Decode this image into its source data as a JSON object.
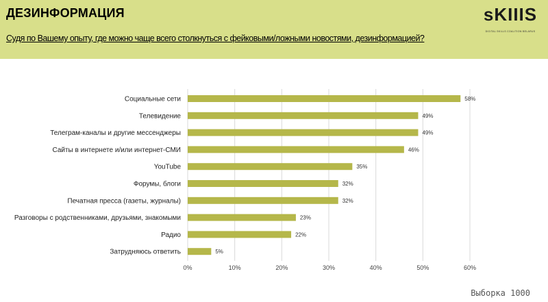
{
  "header": {
    "title": "ДЕЗИНФОРМАЦИЯ",
    "subtitle": "Судя по Вашему опыту, где можно чаще всего столкнуться с фейковыми/ложными новостями, дезинформацией?",
    "logo_text": "sKIIIS",
    "logo_tagline": "DIGITAL SKILLS COALITION BELARUS"
  },
  "footer": {
    "sample_note": "Выборка 1000"
  },
  "colors": {
    "header_bg": "#d8df8a",
    "bar": "#b5b74a",
    "grid": "#d9d9d9"
  },
  "chart_data": {
    "type": "bar",
    "orientation": "horizontal",
    "categories": [
      "Социальные сети",
      "Телевидение",
      "Телеграм-каналы и другие мессенджеры",
      "Сайты в интернете и/или интернет-СМИ",
      "YouTube",
      "Форумы, блоги",
      "Печатная пресса (газеты, журналы)",
      "Разговоры с родственниками, друзьями, знакомыми",
      "Радио",
      "Затрудняюсь ответить"
    ],
    "values": [
      58,
      49,
      49,
      46,
      35,
      32,
      32,
      23,
      22,
      5
    ],
    "value_labels": [
      "58%",
      "49%",
      "49%",
      "46%",
      "35%",
      "32%",
      "32%",
      "23%",
      "22%",
      "5%"
    ],
    "x_ticks": [
      "0%",
      "10%",
      "20%",
      "30%",
      "40%",
      "50%",
      "60%"
    ],
    "xlim": [
      0,
      60
    ],
    "grid": true,
    "legend": "none"
  }
}
